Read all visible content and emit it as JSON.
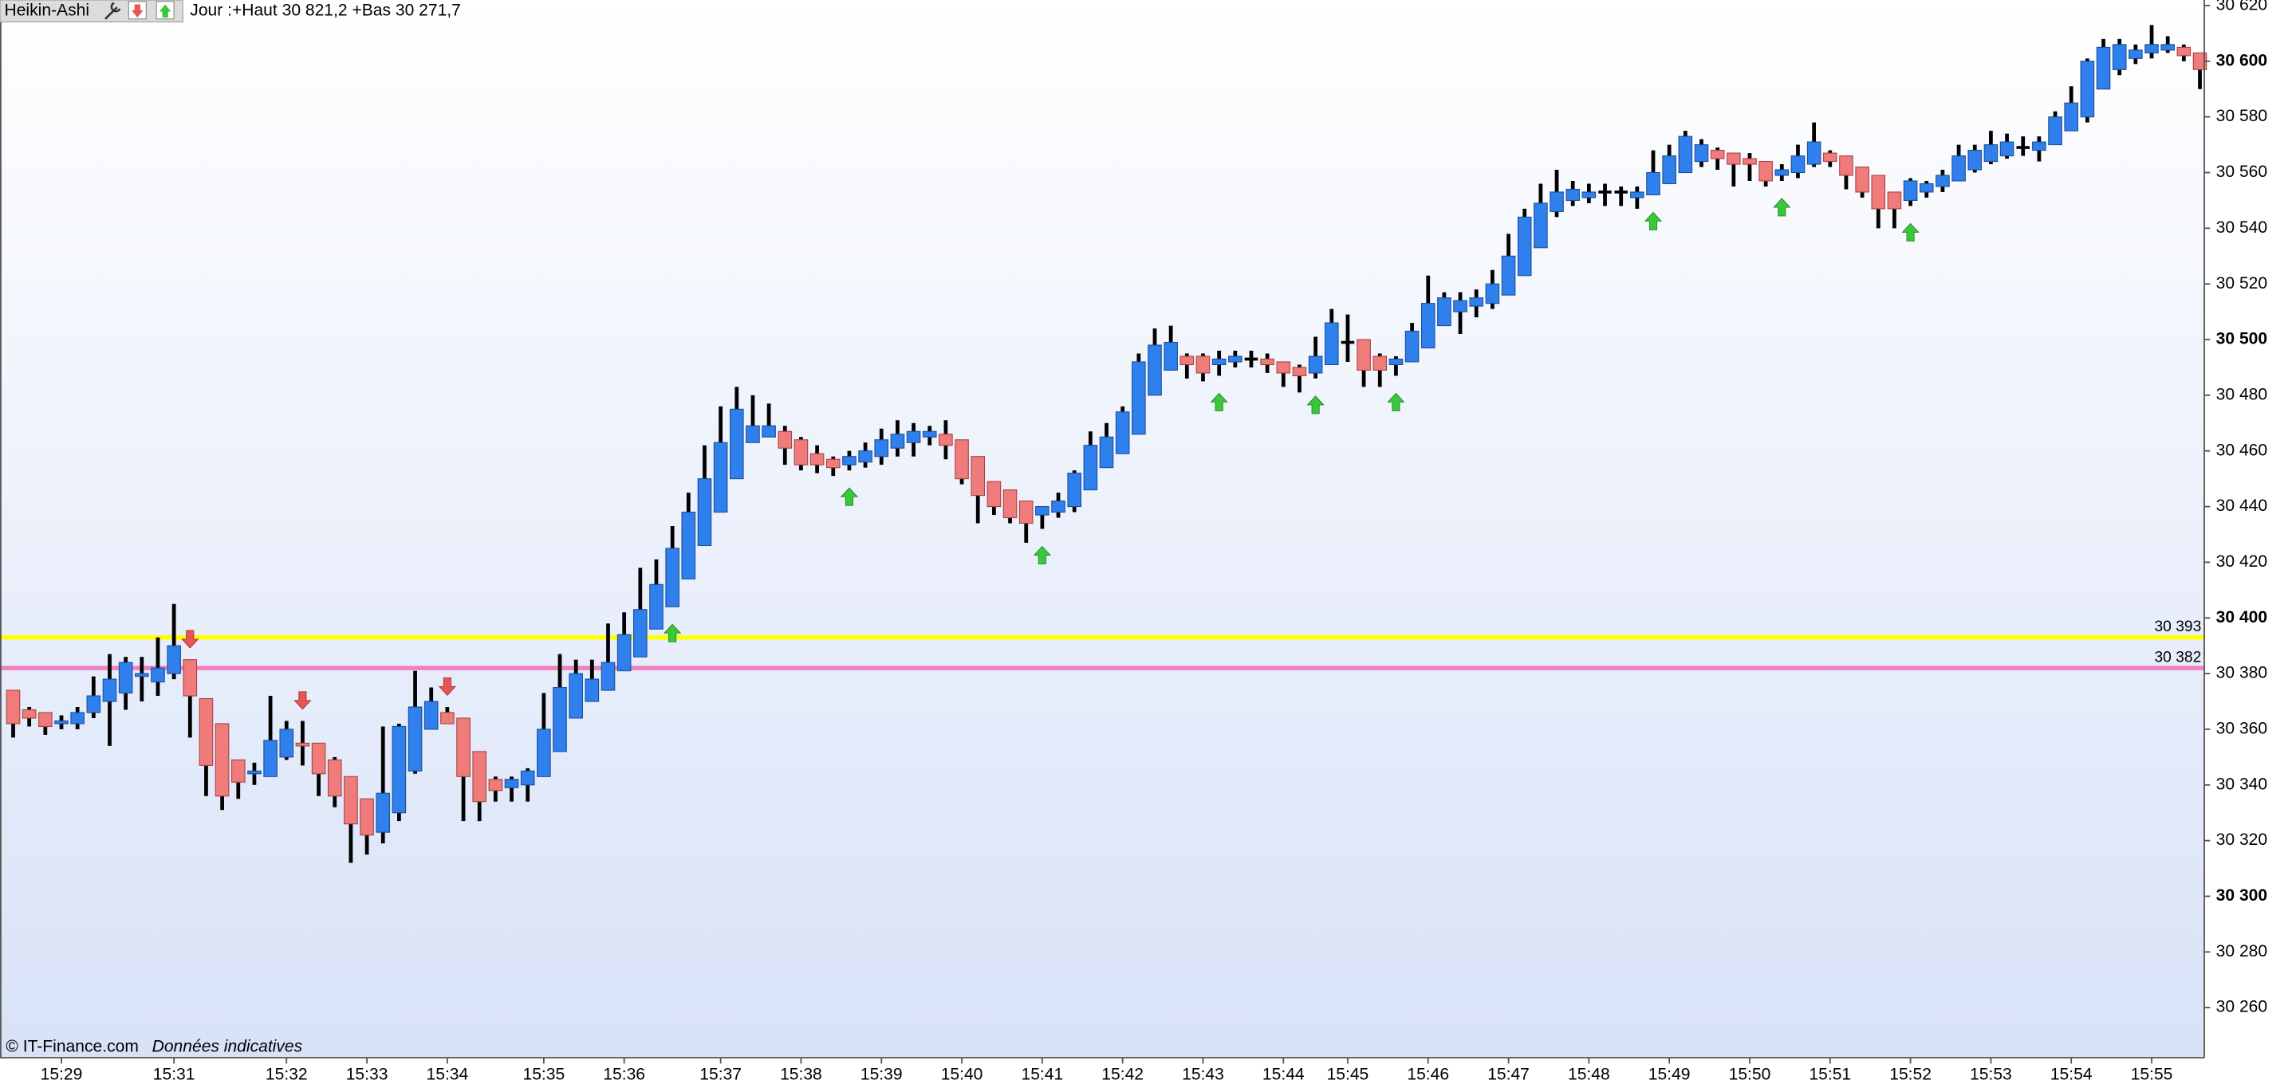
{
  "chart_data": {
    "type": "candlestick",
    "indicator": "Heikin-Ashi",
    "range_text": "Jour :+Haut 30 821,2 +Bas 30 271,7",
    "source": "© IT-Finance.com",
    "note": "Données indicatives",
    "x": [
      null,
      null,
      null,
      "15:29",
      null,
      null,
      null,
      null,
      null,
      null,
      "15:31",
      null,
      null,
      null,
      null,
      null,
      null,
      "15:32",
      null,
      null,
      null,
      null,
      "15:33",
      null,
      null,
      null,
      null,
      "15:34",
      null,
      null,
      null,
      null,
      null,
      "15:35",
      null,
      null,
      null,
      null,
      "15:36",
      null,
      null,
      null,
      null,
      null,
      "15:37",
      null,
      null,
      null,
      null,
      "15:38",
      null,
      null,
      null,
      null,
      "15:39",
      null,
      null,
      null,
      null,
      "15:40",
      null,
      null,
      null,
      null,
      "15:41",
      null,
      null,
      null,
      null,
      "15:42",
      null,
      null,
      null,
      null,
      "15:43",
      null,
      null,
      null,
      null,
      "15:44",
      null,
      null,
      null,
      "15:45",
      null,
      null,
      null,
      null,
      "15:46",
      null,
      null,
      null,
      null,
      "15:47",
      null,
      null,
      null,
      null,
      "15:48",
      null,
      null,
      null,
      null,
      "15:49",
      null,
      null,
      null,
      null,
      "15:50",
      null,
      null,
      null,
      null,
      "15:51",
      null,
      null,
      null,
      null,
      "15:52",
      null,
      null,
      null,
      null,
      "15:53",
      null,
      null,
      null,
      null,
      "15:54",
      null,
      null,
      null,
      null,
      "15:55",
      null,
      null,
      null
    ],
    "open": [
      30374,
      30367,
      30366,
      30362,
      30362,
      30366,
      30370,
      30373,
      30379,
      30377,
      30380,
      30385,
      30371,
      30362,
      30349,
      30344,
      30343,
      30350,
      30355,
      30355,
      30349,
      30343,
      30335,
      30323,
      30330,
      30345,
      30360,
      30366,
      30364,
      30352,
      30342,
      30339,
      30340,
      30343,
      30352,
      30364,
      30370,
      30374,
      30381,
      30386,
      30396,
      30404,
      30414,
      30426,
      30438,
      30450,
      30463,
      30465,
      30467,
      30464,
      30459,
      30457,
      30455,
      30456,
      30458,
      30461,
      30463,
      30465,
      30466,
      30464,
      30458,
      30449,
      30446,
      30442,
      30437,
      30438,
      30440,
      30446,
      30454,
      30459,
      30466,
      30480,
      30489,
      30494,
      30494,
      30491,
      30492,
      30493,
      30493,
      30492,
      30490,
      30488,
      30491,
      30499,
      30500,
      30494,
      30491,
      30492,
      30497,
      30505,
      30510,
      30512,
      30513,
      30516,
      30523,
      30533,
      30546,
      30550,
      30551,
      30553,
      30553,
      30551,
      30552,
      30556,
      30560,
      30564,
      30568,
      30567,
      30565,
      30564,
      30559,
      30560,
      30563,
      30567,
      30566,
      30562,
      30559,
      30553,
      30550,
      30553,
      30555,
      30557,
      30561,
      30564,
      30566,
      30569,
      30568,
      30570,
      30575,
      30580,
      30590,
      30597,
      30601,
      30603,
      30604,
      30605,
      30603
    ],
    "high": [
      30374,
      30368,
      30366,
      30365,
      30368,
      30379,
      30387,
      30386,
      30386,
      30393,
      30405,
      30385,
      30371,
      30362,
      30349,
      30348,
      30372,
      30363,
      30363,
      30355,
      30350,
      30343,
      30335,
      30361,
      30362,
      30381,
      30375,
      30368,
      30364,
      30352,
      30343,
      30343,
      30346,
      30373,
      30387,
      30385,
      30385,
      30398,
      30402,
      30418,
      30421,
      30433,
      30445,
      30462,
      30476,
      30483,
      30480,
      30477,
      30469,
      30465,
      30462,
      30458,
      30460,
      30463,
      30468,
      30471,
      30470,
      30469,
      30471,
      30464,
      30458,
      30449,
      30446,
      30442,
      30440,
      30445,
      30453,
      30467,
      30470,
      30476,
      30495,
      30504,
      30505,
      30495,
      30495,
      30496,
      30496,
      30496,
      30495,
      30492,
      30491,
      30501,
      30511,
      30509,
      30500,
      30495,
      30494,
      30506,
      30523,
      30517,
      30517,
      30518,
      30525,
      30538,
      30547,
      30556,
      30561,
      30557,
      30556,
      30556,
      30555,
      30555,
      30568,
      30570,
      30575,
      30572,
      30569,
      30567,
      30567,
      30564,
      30563,
      30570,
      30578,
      30568,
      30566,
      30562,
      30559,
      30553,
      30558,
      30557,
      30561,
      30570,
      30570,
      30575,
      30574,
      30573,
      30573,
      30582,
      30591,
      30601,
      30608,
      30608,
      30606,
      30613,
      30609,
      30606,
      30603
    ],
    "low": [
      30357,
      30361,
      30358,
      30360,
      30360,
      30364,
      30354,
      30367,
      30370,
      30372,
      30378,
      30357,
      30336,
      30331,
      30335,
      30340,
      30343,
      30349,
      30347,
      30336,
      30332,
      30312,
      30315,
      30319,
      30327,
      30344,
      30360,
      30362,
      30327,
      30327,
      30334,
      30334,
      30334,
      30343,
      30352,
      30364,
      30370,
      30374,
      30381,
      30386,
      30396,
      30404,
      30414,
      30426,
      30438,
      30450,
      30463,
      30465,
      30455,
      30453,
      30452,
      30451,
      30453,
      30454,
      30455,
      30458,
      30458,
      30462,
      30457,
      30448,
      30434,
      30437,
      30434,
      30427,
      30432,
      30436,
      30438,
      30446,
      30454,
      30459,
      30466,
      30480,
      30489,
      30486,
      30485,
      30487,
      30490,
      30490,
      30488,
      30483,
      30481,
      30486,
      30491,
      30492,
      30483,
      30483,
      30487,
      30492,
      30497,
      30505,
      30502,
      30508,
      30511,
      30516,
      30523,
      30533,
      30544,
      30548,
      30549,
      30548,
      30548,
      30547,
      30552,
      30556,
      30560,
      30562,
      30561,
      30555,
      30557,
      30555,
      30557,
      30558,
      30562,
      30562,
      30554,
      30551,
      30540,
      30540,
      30548,
      30551,
      30553,
      30557,
      30560,
      30563,
      30565,
      30566,
      30564,
      30570,
      30575,
      30578,
      30590,
      30595,
      30599,
      30601,
      30603,
      30600,
      30590
    ],
    "close": [
      30362,
      30364,
      30361,
      30363,
      30366,
      30372,
      30378,
      30384,
      30380,
      30382,
      30390,
      30372,
      30347,
      30336,
      30341,
      30345,
      30356,
      30360,
      30354,
      30344,
      30336,
      30326,
      30322,
      30337,
      30361,
      30368,
      30370,
      30362,
      30343,
      30334,
      30338,
      30342,
      30345,
      30360,
      30375,
      30380,
      30378,
      30384,
      30394,
      30403,
      30412,
      30425,
      30438,
      30450,
      30463,
      30475,
      30469,
      30469,
      30461,
      30455,
      30455,
      30454,
      30458,
      30460,
      30464,
      30466,
      30467,
      30467,
      30462,
      30450,
      30444,
      30440,
      30436,
      30434,
      30440,
      30442,
      30452,
      30462,
      30465,
      30474,
      30492,
      30498,
      30499,
      30491,
      30488,
      30493,
      30494,
      30493,
      30491,
      30488,
      30487,
      30494,
      30506,
      30499,
      30489,
      30489,
      30493,
      30503,
      30513,
      30515,
      30514,
      30515,
      30520,
      30530,
      30544,
      30549,
      30553,
      30554,
      30553,
      30553,
      30553,
      30553,
      30560,
      30566,
      30573,
      30570,
      30565,
      30563,
      30563,
      30557,
      30561,
      30566,
      30571,
      30564,
      30559,
      30553,
      30547,
      30547,
      30557,
      30556,
      30559,
      30566,
      30568,
      30570,
      30571,
      30569,
      30571,
      30580,
      30585,
      30600,
      30605,
      30606,
      30604,
      30606,
      30606,
      30602,
      30597
    ],
    "up_color": "#2f80ed",
    "down_color": "#f07b7b",
    "doji_color": "#000000",
    "buy_signals": [
      41,
      52,
      64,
      75,
      81,
      86,
      102,
      110,
      118
    ],
    "sell_signals": [
      11,
      18,
      27
    ],
    "signal_up_color": "#3cc63c",
    "signal_down_color": "#e85555",
    "hlines": [
      {
        "value": 30393,
        "label": "30 393",
        "color": "#ffff00"
      },
      {
        "value": 30382,
        "label": "30 382",
        "color": "#f080c0"
      }
    ],
    "ylim": [
      30242,
      30622
    ],
    "yticks": [
      {
        "value": 30260,
        "label": "30 260"
      },
      {
        "value": 30280,
        "label": "30 280"
      },
      {
        "value": 30300,
        "label": "30 300"
      },
      {
        "value": 30320,
        "label": "30 320"
      },
      {
        "value": 30340,
        "label": "30 340"
      },
      {
        "value": 30360,
        "label": "30 360"
      },
      {
        "value": 30380,
        "label": "30 380"
      },
      {
        "value": 30400,
        "label": "30 400"
      },
      {
        "value": 30420,
        "label": "30 420"
      },
      {
        "value": 30440,
        "label": "30 440"
      },
      {
        "value": 30460,
        "label": "30 460"
      },
      {
        "value": 30480,
        "label": "30 480"
      },
      {
        "value": 30500,
        "label": "30 500"
      },
      {
        "value": 30520,
        "label": "30 520"
      },
      {
        "value": 30540,
        "label": "30 540"
      },
      {
        "value": 30560,
        "label": "30 560"
      },
      {
        "value": 30580,
        "label": "30 580"
      },
      {
        "value": 30600,
        "label": "30 600"
      },
      {
        "value": 30620,
        "label": "30 620"
      }
    ]
  }
}
